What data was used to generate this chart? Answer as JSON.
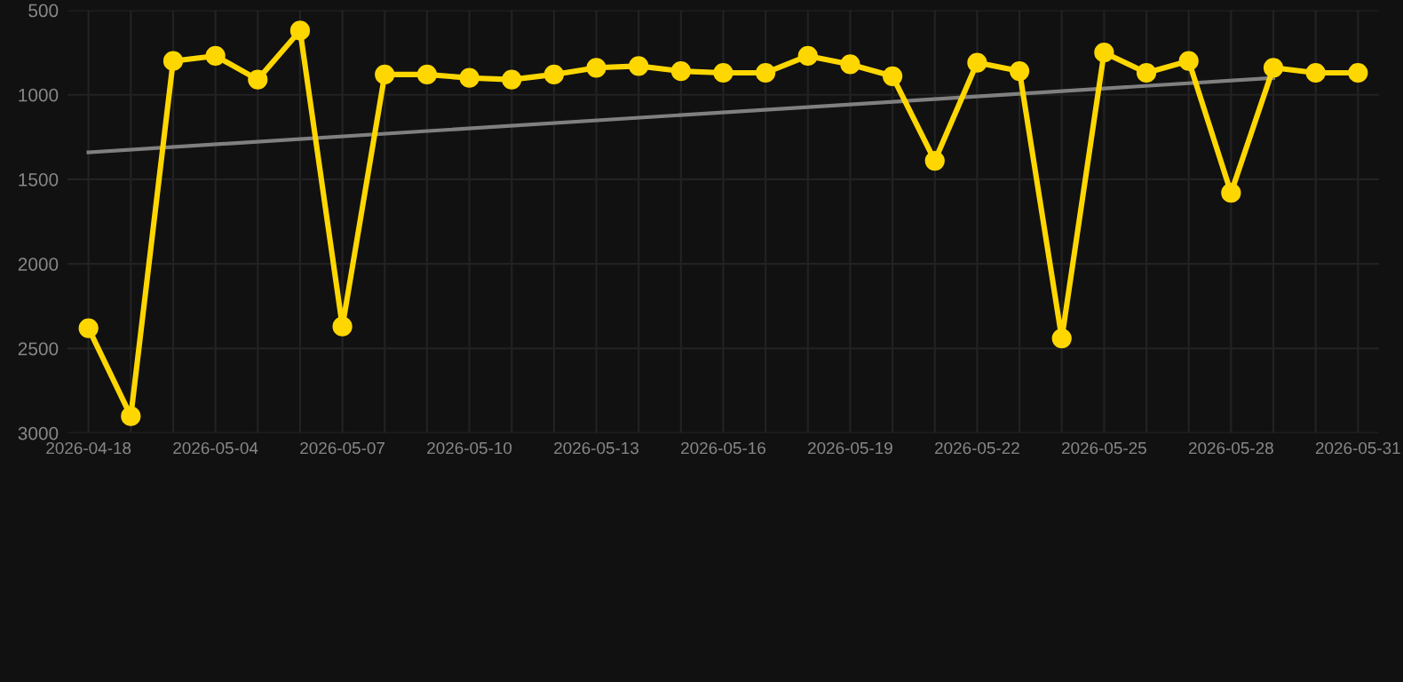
{
  "chart_data": {
    "type": "line",
    "categories": [
      "2026-04-18",
      null,
      null,
      "2026-05-04",
      null,
      null,
      "2026-05-07",
      null,
      null,
      "2026-05-10",
      null,
      null,
      "2026-05-13",
      null,
      null,
      "2026-05-16",
      null,
      null,
      "2026-05-19",
      null,
      null,
      "2026-05-22",
      null,
      null,
      "2026-05-25",
      null,
      null,
      "2026-05-28",
      null,
      null,
      "2026-05-31"
    ],
    "series": [
      {
        "color": "#ffd700",
        "marker": "circle",
        "values": [
          2380,
          2900,
          800,
          770,
          910,
          620,
          2370,
          880,
          880,
          900,
          910,
          880,
          840,
          830,
          860,
          870,
          870,
          770,
          820,
          890,
          1390,
          810,
          860,
          2440,
          750,
          870,
          800,
          1580,
          840,
          870,
          870
        ]
      },
      {
        "color": "#808080",
        "marker": "none",
        "values": [
          1340,
          null,
          null,
          null,
          null,
          null,
          null,
          null,
          null,
          null,
          null,
          null,
          null,
          null,
          null,
          null,
          null,
          null,
          null,
          null,
          null,
          null,
          null,
          null,
          null,
          null,
          null,
          null,
          900,
          null,
          null
        ]
      }
    ],
    "ylim": [
      3000,
      500
    ],
    "yticks": [
      500,
      1000,
      1500,
      2000,
      2500,
      3000
    ],
    "grid": true
  }
}
